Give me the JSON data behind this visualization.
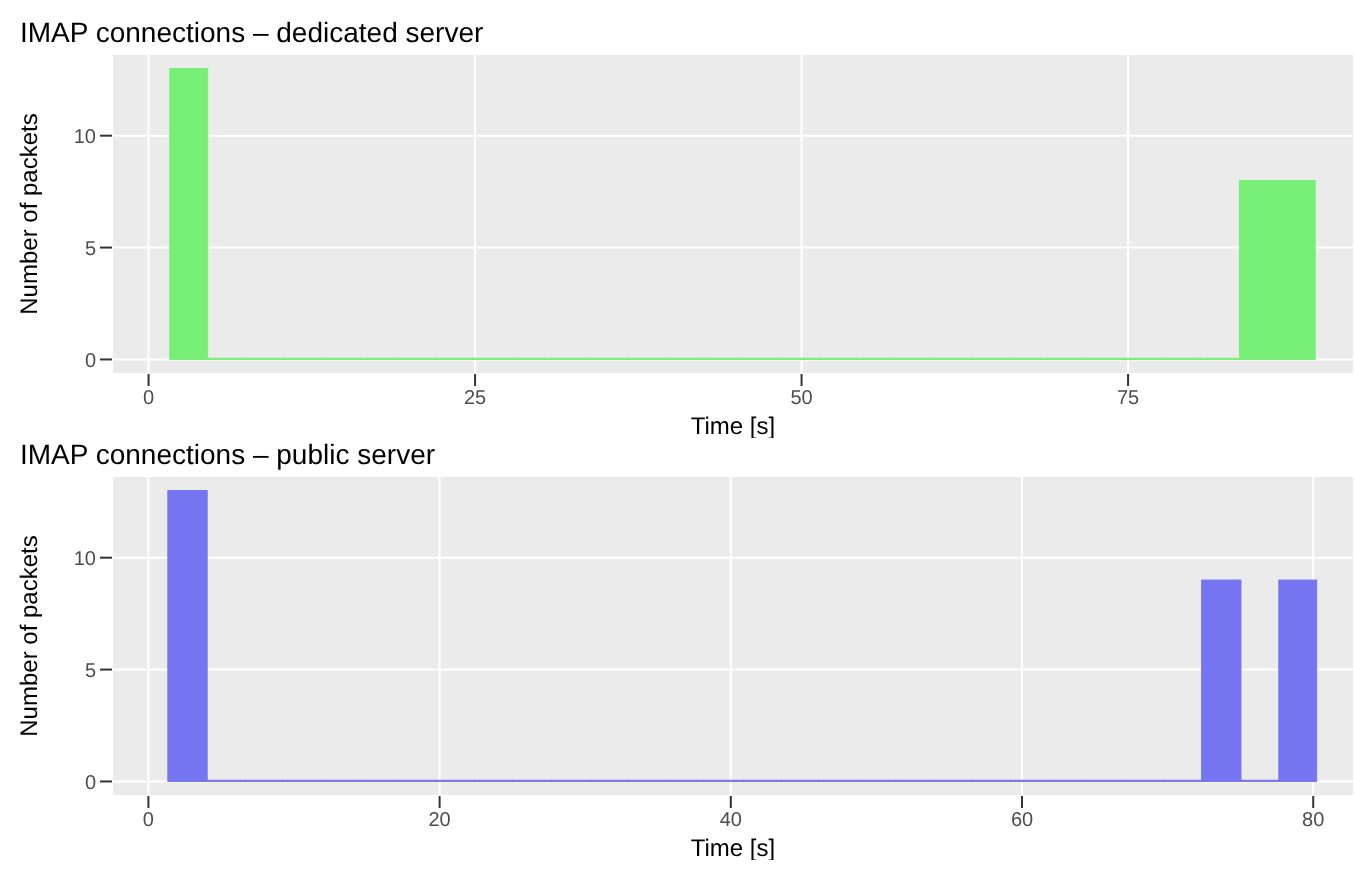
{
  "chart_data": [
    {
      "type": "histogram",
      "title": "IMAP connections – dedicated server",
      "xlabel": "Time [s]",
      "ylabel": "Number of packets",
      "color": "#77ef77",
      "bins": [
        1.7,
        4.6,
        7.5,
        10.4,
        13.4,
        16.3,
        19.2,
        22.1,
        25.1,
        28.0,
        30.9,
        33.8,
        36.8,
        39.7,
        42.6,
        45.5,
        48.5,
        51.4,
        54.3,
        57.2,
        60.2,
        63.1,
        66.0,
        68.9,
        71.9,
        74.8,
        77.7,
        80.6,
        83.6,
        86.5,
        89.4
      ],
      "values": [
        13,
        0,
        0,
        0,
        0,
        0,
        0,
        0,
        0,
        0,
        0,
        0,
        0,
        0,
        0,
        0,
        0,
        0,
        0,
        0,
        0,
        0,
        0,
        0,
        0,
        0,
        0,
        0,
        8,
        8
      ],
      "xlim": [
        -2.8,
        92.3
      ],
      "xticks": [
        0,
        25,
        50,
        75
      ],
      "ylim": [
        -0.65,
        13.65
      ],
      "yticks": [
        0,
        5,
        10
      ],
      "grid": true
    },
    {
      "type": "histogram",
      "title": "IMAP connections – public server",
      "xlabel": "Time [s]",
      "ylabel": "Number of packets",
      "color": "#7575f2",
      "bins": [
        1.4,
        4.1,
        6.7,
        9.3,
        12.0,
        14.6,
        17.2,
        19.8,
        22.5,
        25.1,
        27.7,
        30.4,
        33.0,
        35.6,
        38.2,
        40.9,
        43.5,
        46.1,
        48.8,
        51.4,
        54.0,
        56.6,
        59.3,
        61.9,
        64.5,
        67.2,
        69.8,
        72.4,
        75.1,
        77.7,
        80.3
      ],
      "values": [
        13,
        0,
        0,
        0,
        0,
        0,
        0,
        0,
        0,
        0,
        0,
        0,
        0,
        0,
        0,
        0,
        0,
        0,
        0,
        0,
        0,
        0,
        0,
        0,
        0,
        0,
        0,
        9,
        0,
        9
      ],
      "xlim": [
        -2.5,
        82.8
      ],
      "xticks": [
        0,
        20,
        40,
        60,
        80
      ],
      "ylim": [
        -0.65,
        13.65
      ],
      "yticks": [
        0,
        5,
        10
      ],
      "grid": true
    }
  ]
}
